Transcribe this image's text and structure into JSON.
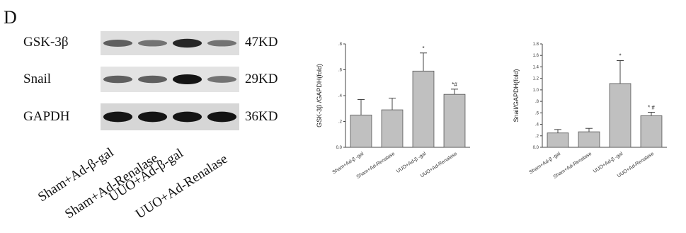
{
  "panel_label": "D",
  "blots": [
    {
      "protein": "GSK-3β",
      "size": "47KD",
      "intensity": [
        0.55,
        0.45,
        0.85,
        0.45
      ],
      "background": "#dedede"
    },
    {
      "protein": "Snail",
      "size": "29KD",
      "intensity": [
        0.55,
        0.55,
        0.95,
        0.45
      ],
      "background": "#e3e3e3"
    },
    {
      "protein": "GAPDH",
      "size": "36KD",
      "intensity": [
        0.95,
        0.95,
        0.95,
        0.95
      ],
      "background": "#d6d6d6"
    }
  ],
  "lanes": [
    "Sham+Ad-β-gal",
    "Sham+Ad-Renalase",
    "UUO+Ad-β-gal",
    "UUO+Ad-Renalase"
  ],
  "chart_data": [
    {
      "type": "bar",
      "ylabel": "GSK-3β /GAPDH(fold)",
      "categories": [
        "Sham+Ad-β -gal",
        "Sham+Ad-Renalase",
        "UUO+Ad-β -gal",
        "UUO+Ad-Renalase"
      ],
      "values": [
        0.25,
        0.29,
        0.59,
        0.41
      ],
      "errors": [
        0.12,
        0.09,
        0.14,
        0.04
      ],
      "annotations": [
        "",
        "",
        "*",
        "*#"
      ],
      "yticks": [
        0.0,
        0.2,
        0.4,
        0.6,
        0.8
      ],
      "ytick_labels": [
        "0.0",
        ".2",
        ".4",
        ".6",
        ".8"
      ],
      "ylim": [
        0,
        0.8
      ],
      "bar_color": "#c0c0c0"
    },
    {
      "type": "bar",
      "ylabel": "Snail/GAPDH(fold)",
      "categories": [
        "Sham+Ad-β -gal",
        "Sham+Ad-Renalase",
        "UUO+Ad-β -gal",
        "UUO+Ad-Renalase"
      ],
      "values": [
        0.25,
        0.27,
        1.11,
        0.55
      ],
      "errors": [
        0.06,
        0.06,
        0.4,
        0.06
      ],
      "annotations": [
        "",
        "",
        "*",
        "* #"
      ],
      "yticks": [
        0.0,
        0.2,
        0.4,
        0.6,
        0.8,
        1.0,
        1.2,
        1.4,
        1.6,
        1.8
      ],
      "ytick_labels": [
        "0.0",
        ".2",
        ".4",
        ".6",
        ".8",
        "1.0",
        "1.2",
        "1.4",
        "1.6",
        "1.8"
      ],
      "ylim": [
        0,
        1.8
      ],
      "bar_color": "#c0c0c0"
    }
  ]
}
